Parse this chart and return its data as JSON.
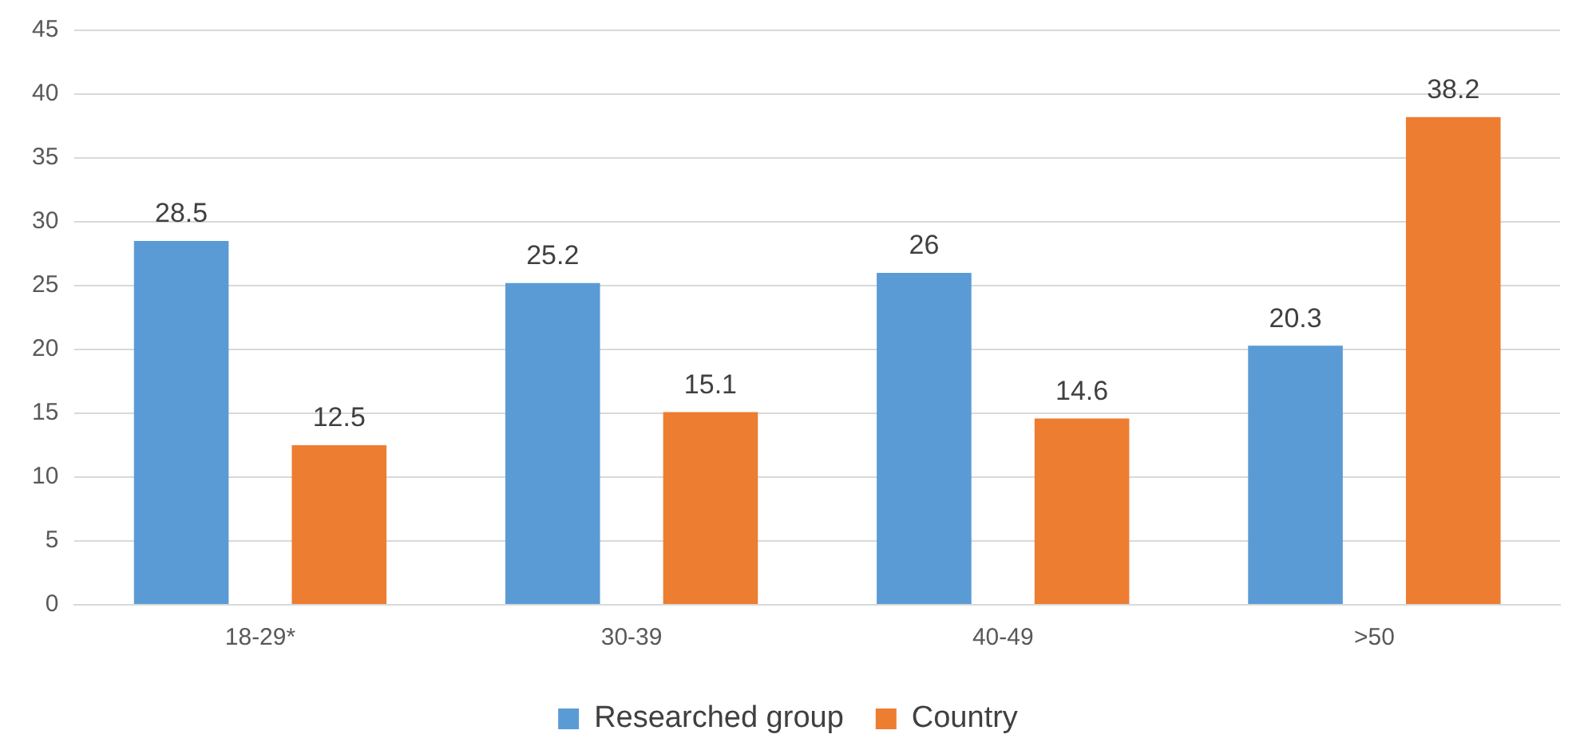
{
  "chart_data": {
    "type": "bar",
    "categories": [
      "18-29*",
      "30-39",
      "40-49",
      ">50"
    ],
    "series": [
      {
        "name": "Researched group",
        "color": "#5b9bd5",
        "values": [
          28.5,
          25.2,
          26,
          20.3
        ]
      },
      {
        "name": "Country",
        "color": "#ed7d31",
        "values": [
          12.5,
          15.1,
          14.6,
          38.2
        ]
      }
    ],
    "ylim": [
      0,
      45
    ],
    "yticks": [
      0,
      5,
      10,
      15,
      20,
      25,
      30,
      35,
      40,
      45
    ],
    "grid": "y",
    "legend": "bottom",
    "data_labels": true
  }
}
